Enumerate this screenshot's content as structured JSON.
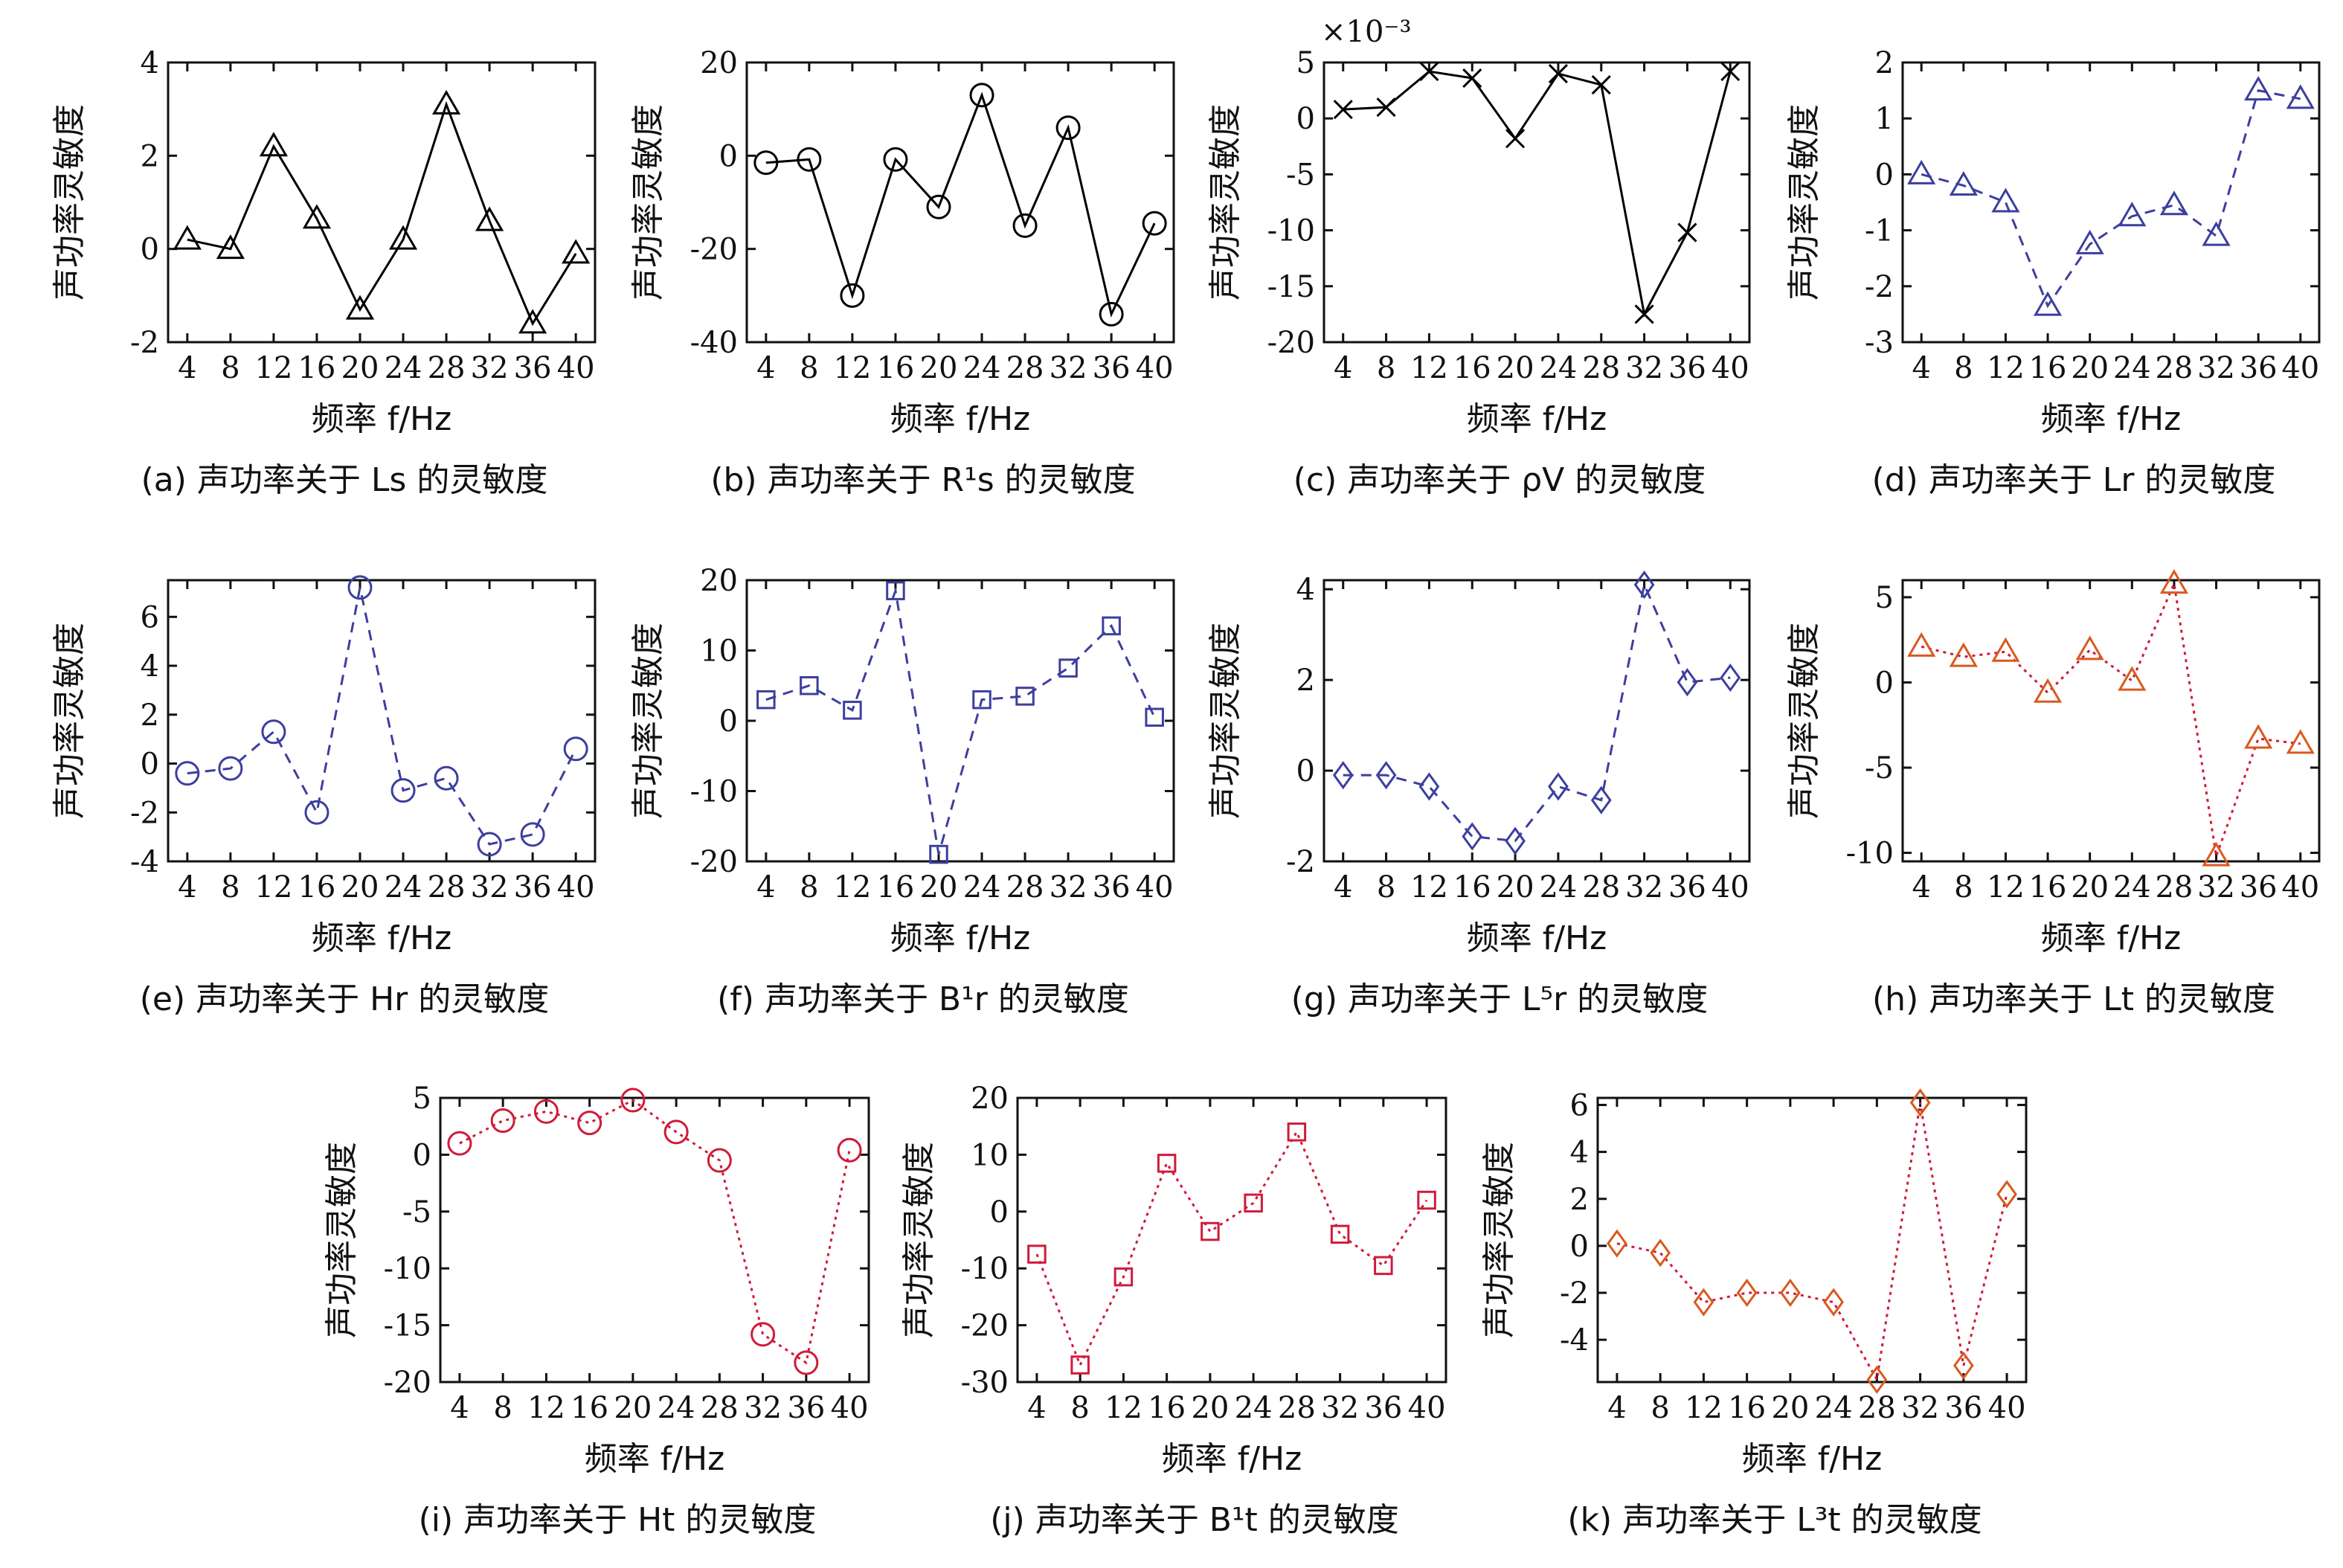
{
  "chart_data": [
    {
      "type": "line",
      "panel": "a",
      "marker": "triangle",
      "line": "solid",
      "color": "#000000",
      "categories": [
        "4",
        "8",
        "12",
        "16",
        "20",
        "24",
        "28",
        "32",
        "36",
        "40"
      ],
      "values": [
        0.2,
        0.0,
        2.2,
        0.65,
        -1.3,
        0.2,
        3.1,
        0.6,
        -1.6,
        -0.1
      ],
      "ylim": [
        -2,
        4
      ],
      "yticks": [
        -2,
        0,
        2,
        4
      ],
      "exponent": "",
      "ylabel": "声功率灵敏度",
      "xlabel": "频率 f/Hz",
      "caption": "(a) 声功率关于 Ls 的灵敏度"
    },
    {
      "type": "line",
      "panel": "b",
      "marker": "circle",
      "line": "solid",
      "color": "#000000",
      "categories": [
        "4",
        "8",
        "12",
        "16",
        "20",
        "24",
        "28",
        "32",
        "36",
        "40"
      ],
      "values": [
        -1.5,
        -0.8,
        -30,
        -0.8,
        -11,
        13,
        -15,
        6,
        -34,
        -14.5
      ],
      "ylim": [
        -40,
        20
      ],
      "yticks": [
        -40,
        -20,
        0,
        20
      ],
      "exponent": "",
      "ylabel": "声功率灵敏度",
      "xlabel": "频率 f/Hz",
      "caption": "(b) 声功率关于 R¹s 的灵敏度"
    },
    {
      "type": "line",
      "panel": "c",
      "marker": "x",
      "line": "solid",
      "color": "#000000",
      "categories": [
        "4",
        "8",
        "12",
        "16",
        "20",
        "24",
        "28",
        "32",
        "36",
        "40"
      ],
      "values": [
        0.8,
        1.0,
        4.2,
        3.6,
        -1.8,
        4.0,
        3.0,
        -17.5,
        -10.2,
        4.2
      ],
      "ylim": [
        -20,
        5
      ],
      "yticks": [
        -20,
        -15,
        -10,
        -5,
        0,
        5
      ],
      "exponent": "×10⁻³",
      "ylabel": "声功率灵敏度",
      "xlabel": "频率 f/Hz",
      "caption": "(c) 声功率关于 ρV 的灵敏度"
    },
    {
      "type": "line",
      "panel": "d",
      "marker": "triangle",
      "line": "dashed",
      "color": "#3c3f9e",
      "categories": [
        "4",
        "8",
        "12",
        "16",
        "20",
        "24",
        "28",
        "32",
        "36",
        "40"
      ],
      "values": [
        0.0,
        -0.2,
        -0.5,
        -2.35,
        -1.25,
        -0.75,
        -0.55,
        -1.1,
        1.5,
        1.35
      ],
      "ylim": [
        -3,
        2
      ],
      "yticks": [
        -3,
        -2,
        -1,
        0,
        1,
        2
      ],
      "exponent": "",
      "ylabel": "声功率灵敏度",
      "xlabel": "频率 f/Hz",
      "caption": "(d) 声功率关于 Lr 的灵敏度"
    },
    {
      "type": "line",
      "panel": "e",
      "marker": "circle",
      "line": "dashed",
      "color": "#3c3f9e",
      "categories": [
        "4",
        "8",
        "12",
        "16",
        "20",
        "24",
        "28",
        "32",
        "36",
        "40"
      ],
      "values": [
        -0.4,
        -0.2,
        1.3,
        -2.0,
        7.2,
        -1.1,
        -0.6,
        -3.3,
        -2.9,
        0.6
      ],
      "ylim": [
        -4,
        7.5
      ],
      "yticks": [
        -4,
        -2,
        0,
        2,
        4,
        6
      ],
      "exponent": "",
      "ylabel": "声功率灵敏度",
      "xlabel": "频率 f/Hz",
      "caption": "(e) 声功率关于 Hr 的灵敏度"
    },
    {
      "type": "line",
      "panel": "f",
      "marker": "square",
      "line": "dashed",
      "color": "#3c3f9e",
      "categories": [
        "4",
        "8",
        "12",
        "16",
        "20",
        "24",
        "28",
        "32",
        "36",
        "40"
      ],
      "values": [
        3,
        5,
        1.5,
        18.5,
        -19,
        3,
        3.5,
        7.5,
        13.5,
        0.5
      ],
      "ylim": [
        -20,
        20
      ],
      "yticks": [
        -20,
        -10,
        0,
        10,
        20
      ],
      "exponent": "",
      "ylabel": "声功率灵敏度",
      "xlabel": "频率 f/Hz",
      "caption": "(f) 声功率关于 B¹r 的灵敏度"
    },
    {
      "type": "line",
      "panel": "g",
      "marker": "diamond",
      "line": "dashed",
      "color": "#3c3f9e",
      "categories": [
        "4",
        "8",
        "12",
        "16",
        "20",
        "24",
        "28",
        "32",
        "36",
        "40"
      ],
      "values": [
        -0.1,
        -0.1,
        -0.35,
        -1.45,
        -1.55,
        -0.35,
        -0.65,
        4.1,
        1.95,
        2.05
      ],
      "ylim": [
        -2,
        4.2
      ],
      "yticks": [
        -2,
        0,
        2,
        4
      ],
      "exponent": "",
      "ylabel": "声功率灵敏度",
      "xlabel": "频率 f/Hz",
      "caption": "(g) 声功率关于 L⁵r 的灵敏度"
    },
    {
      "type": "line",
      "panel": "h",
      "marker": "triangle",
      "line": "dotted",
      "color": "#d11a3a",
      "marker_color": "#d85a1e",
      "categories": [
        "4",
        "8",
        "12",
        "16",
        "20",
        "24",
        "28",
        "32",
        "36",
        "40"
      ],
      "values": [
        2.1,
        1.5,
        1.8,
        -0.6,
        1.9,
        0.1,
        5.8,
        -10.2,
        -3.3,
        -3.6
      ],
      "ylim": [
        -10.5,
        6
      ],
      "yticks": [
        -10,
        -5,
        0,
        5
      ],
      "exponent": "",
      "ylabel": "声功率灵敏度",
      "xlabel": "频率 f/Hz",
      "caption": "(h) 声功率关于 Lt 的灵敏度"
    },
    {
      "type": "line",
      "panel": "i",
      "marker": "circle",
      "line": "dotted",
      "color": "#d11a3a",
      "categories": [
        "4",
        "8",
        "12",
        "16",
        "20",
        "24",
        "28",
        "32",
        "36",
        "40"
      ],
      "values": [
        1.0,
        3.0,
        3.8,
        2.8,
        4.8,
        2.0,
        -0.5,
        -15.8,
        -18.3,
        0.4
      ],
      "ylim": [
        -20,
        5
      ],
      "yticks": [
        -20,
        -15,
        -10,
        -5,
        0,
        5
      ],
      "exponent": "",
      "ylabel": "声功率灵敏度",
      "xlabel": "频率 f/Hz",
      "caption": "(i) 声功率关于 Ht 的灵敏度"
    },
    {
      "type": "line",
      "panel": "j",
      "marker": "square",
      "line": "dotted",
      "color": "#d11a3a",
      "categories": [
        "4",
        "8",
        "12",
        "16",
        "20",
        "24",
        "28",
        "32",
        "36",
        "40"
      ],
      "values": [
        -7.5,
        -27,
        -11.5,
        8.5,
        -3.5,
        1.5,
        14,
        -4,
        -9.5,
        2
      ],
      "ylim": [
        -30,
        20
      ],
      "yticks": [
        -30,
        -20,
        -10,
        0,
        10,
        20
      ],
      "exponent": "",
      "ylabel": "声功率灵敏度",
      "xlabel": "频率 f/Hz",
      "caption": "(j) 声功率关于 B¹t 的灵敏度"
    },
    {
      "type": "line",
      "panel": "k",
      "marker": "diamond",
      "line": "dotted",
      "color": "#d11a3a",
      "marker_color": "#d85a1e",
      "categories": [
        "4",
        "8",
        "12",
        "16",
        "20",
        "24",
        "28",
        "32",
        "36",
        "40"
      ],
      "values": [
        0.1,
        -0.3,
        -2.4,
        -2.0,
        -2.0,
        -2.4,
        -5.7,
        6.1,
        -5.1,
        2.2
      ],
      "ylim": [
        -5.8,
        6.3
      ],
      "yticks": [
        -4,
        -2,
        0,
        2,
        4,
        6
      ],
      "exponent": "",
      "ylabel": "声功率灵敏度",
      "xlabel": "频率 f/Hz",
      "caption": "(k) 声功率关于 L³t 的灵敏度"
    }
  ]
}
